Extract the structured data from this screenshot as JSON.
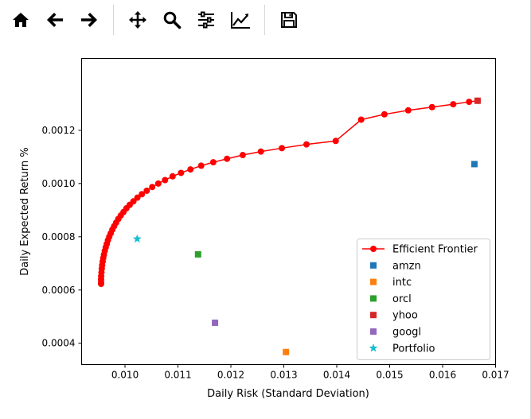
{
  "toolbar": {
    "buttons": [
      {
        "name": "home-icon"
      },
      {
        "name": "back-arrow-icon"
      },
      {
        "name": "forward-arrow-icon"
      },
      {
        "name": "pan-icon"
      },
      {
        "name": "zoom-icon"
      },
      {
        "name": "configure-subplots-icon"
      },
      {
        "name": "edit-axis-icon"
      },
      {
        "name": "save-icon"
      }
    ]
  },
  "chart_data": {
    "type": "scatter",
    "title": "",
    "xlabel": "Daily Risk (Standard Deviation)",
    "ylabel": "Daily Expected Return %",
    "xlim": [
      0.00918,
      0.017
    ],
    "ylim": [
      0.00032,
      0.00147
    ],
    "xticks": [
      0.01,
      0.011,
      0.012,
      0.013,
      0.014,
      0.015,
      0.016,
      0.017
    ],
    "xtick_labels": [
      "0.010",
      "0.011",
      "0.012",
      "0.013",
      "0.014",
      "0.015",
      "0.016",
      "0.017"
    ],
    "yticks": [
      0.0004,
      0.0006,
      0.0008,
      0.001,
      0.0012
    ],
    "ytick_labels": [
      "0.0004",
      "0.0006",
      "0.0008",
      "0.0010",
      "0.0012"
    ],
    "grid": false,
    "legend_position": "lower-right",
    "frontier": {
      "name": "Efficient Frontier",
      "color": "#ff0000",
      "x": [
        0.009548,
        0.009548,
        0.009548,
        0.00955,
        0.009555,
        0.009561,
        0.009568,
        0.009578,
        0.009589,
        0.009602,
        0.009618,
        0.009635,
        0.009655,
        0.009677,
        0.009702,
        0.00973,
        0.009761,
        0.009795,
        0.009832,
        0.009874,
        0.00992,
        0.009971,
        0.010027,
        0.010089,
        0.010158,
        0.010234,
        0.010318,
        0.010411,
        0.010514,
        0.010629,
        0.010756,
        0.010899,
        0.011058,
        0.011237,
        0.011439,
        0.011667,
        0.011927,
        0.012224,
        0.012566,
        0.012963,
        0.013428,
        0.01398,
        0.014461,
        0.0149,
        0.01535,
        0.0158,
        0.0162,
        0.0165,
        0.01666
      ],
      "y": [
        0.000623,
        0.00063,
        0.00064,
        0.000652,
        0.000666,
        0.00068,
        0.000693,
        0.000707,
        0.00072,
        0.000733,
        0.000747,
        0.00076,
        0.000773,
        0.000787,
        0.0008,
        0.000813,
        0.000827,
        0.00084,
        0.000853,
        0.000867,
        0.00088,
        0.000893,
        0.000907,
        0.00092,
        0.000933,
        0.000947,
        0.00096,
        0.000973,
        0.000987,
        0.001,
        0.001013,
        0.001027,
        0.00104,
        0.001053,
        0.001067,
        0.00108,
        0.001093,
        0.001107,
        0.00112,
        0.001133,
        0.001147,
        0.00116,
        0.00124,
        0.00126,
        0.001275,
        0.001287,
        0.001298,
        0.001307,
        0.001311
      ]
    },
    "series": [
      {
        "name": "amzn",
        "marker": "square",
        "color": "#1f77b4",
        "x": 0.0166,
        "y": 0.001073
      },
      {
        "name": "intc",
        "marker": "square",
        "color": "#ff7f0e",
        "x": 0.01304,
        "y": 0.000367
      },
      {
        "name": "orcl",
        "marker": "square",
        "color": "#2ca02c",
        "x": 0.01138,
        "y": 0.000734
      },
      {
        "name": "yhoo",
        "marker": "square",
        "color": "#d62728",
        "x": 0.01666,
        "y": 0.001311
      },
      {
        "name": "googl",
        "marker": "square",
        "color": "#9467bd",
        "x": 0.0117,
        "y": 0.000477
      },
      {
        "name": "Portfolio",
        "marker": "star",
        "color": "#17becf",
        "x": 0.01023,
        "y": 0.000792
      }
    ]
  }
}
